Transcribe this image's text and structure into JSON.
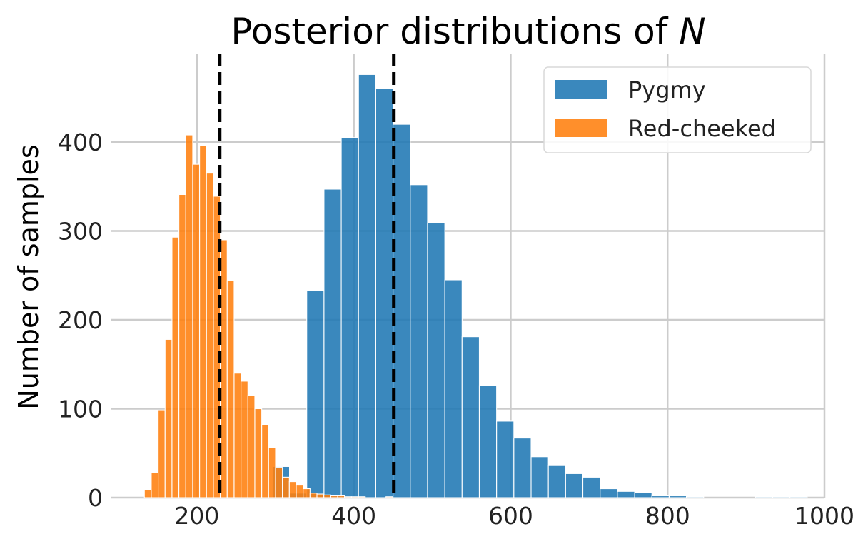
{
  "chart_data": {
    "type": "bar",
    "title": {
      "prefix": "Posterior distributions of ",
      "italic": "N"
    },
    "xlabel": "",
    "ylabel": "Number of samples",
    "xlim": [
      90,
      1000
    ],
    "ylim": [
      0,
      500
    ],
    "xticks": [
      200,
      400,
      600,
      800,
      1000
    ],
    "yticks": [
      0,
      100,
      200,
      300,
      400
    ],
    "grid": true,
    "legend_position": "top-right",
    "vlines": [
      {
        "x": 229,
        "style": "dashed",
        "color": "#000000"
      },
      {
        "x": 451,
        "style": "dashed",
        "color": "#000000"
      }
    ],
    "series": [
      {
        "name": "Pygmy",
        "color": "#1f77b4",
        "bin_edges": [
          230,
          252,
          274,
          296,
          318,
          340,
          362,
          384,
          406,
          428,
          450,
          472,
          494,
          516,
          538,
          560,
          582,
          604,
          626,
          648,
          670,
          692,
          714,
          736,
          758,
          780,
          802,
          824,
          846,
          868,
          890,
          912,
          934,
          956,
          978
        ],
        "counts": [
          1,
          1,
          0,
          35,
          5,
          233,
          347,
          405,
          476,
          460,
          420,
          352,
          309,
          245,
          181,
          126,
          86,
          67,
          46,
          36,
          27,
          23,
          10,
          7,
          6,
          2,
          2,
          1,
          0,
          0,
          0,
          1,
          1,
          1
        ]
      },
      {
        "name": "Red-cheeked",
        "color": "#ff7f0e",
        "bin_edges": [
          133,
          141.8,
          150.6,
          159.4,
          168.2,
          177,
          185.8,
          194.6,
          203.4,
          212.2,
          221,
          229.8,
          238.6,
          247.4,
          256.2,
          265,
          273.8,
          282.6,
          291.4,
          300.2,
          309,
          317.8,
          326.6,
          335.4,
          344.2,
          353,
          361.8,
          370.6,
          379.4,
          388.2,
          397,
          405.8,
          414.6,
          423.4,
          432.2,
          441,
          449.8
        ],
        "counts": [
          9,
          28,
          98,
          178,
          293,
          341,
          408,
          375,
          396,
          365,
          339,
          290,
          244,
          140,
          131,
          115,
          100,
          82,
          56,
          34,
          23,
          18,
          14,
          10,
          5,
          4,
          3,
          2,
          2,
          1,
          1,
          1,
          0,
          0,
          0,
          1
        ]
      }
    ]
  }
}
